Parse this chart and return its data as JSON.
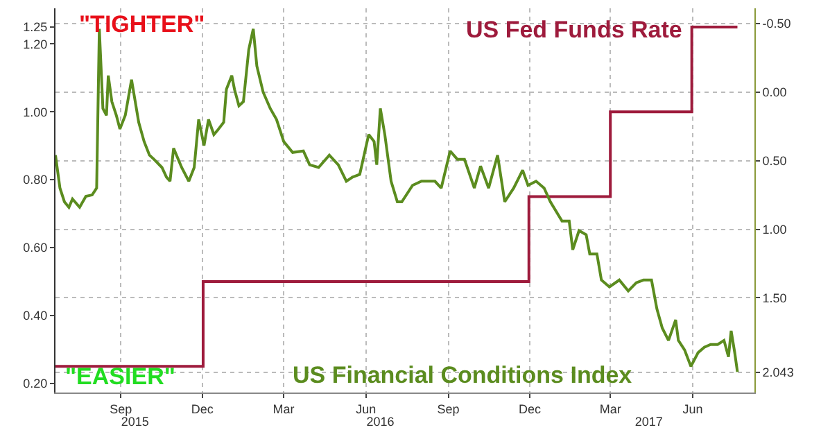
{
  "chart_data": {
    "type": "line",
    "annotations": [
      "\"TIGHTER\"",
      "\"EASIER\""
    ],
    "series": [
      {
        "name": "US Fed Funds Rate",
        "type": "step",
        "color": "#9e1b3c",
        "x": [
          "2015-07-04",
          "2015-12-16",
          "2016-12-14",
          "2017-03-15",
          "2017-06-14",
          "2017-08-04"
        ],
        "values": [
          0.25,
          0.5,
          0.75,
          1.0,
          1.25,
          1.25
        ]
      },
      {
        "name": "US Financial Conditions Index",
        "axis": "y2",
        "color": "#5b8c1f",
        "x": [
          "2015-07-04",
          "2015-07-09",
          "2015-07-14",
          "2015-07-19",
          "2015-07-23",
          "2015-07-31",
          "2015-08-07",
          "2015-08-14",
          "2015-08-19",
          "2015-08-22",
          "2015-08-26",
          "2015-08-30",
          "2015-09-01",
          "2015-09-05",
          "2015-09-10",
          "2015-09-14",
          "2015-09-20",
          "2015-09-27",
          "2015-10-05",
          "2015-10-11",
          "2015-10-17",
          "2015-10-22",
          "2015-10-31",
          "2015-11-05",
          "2015-11-09",
          "2015-11-13",
          "2015-11-22",
          "2015-11-30",
          "2015-12-06",
          "2015-12-11",
          "2015-12-17",
          "2015-12-22",
          "2015-12-28",
          "2016-01-01",
          "2016-01-08",
          "2016-01-11",
          "2016-01-17",
          "2016-01-20",
          "2016-01-25",
          "2016-01-30",
          "2016-02-05",
          "2016-02-10",
          "2016-02-14",
          "2016-02-21",
          "2016-02-29",
          "2016-03-07",
          "2016-03-15",
          "2016-03-25",
          "2016-04-06",
          "2016-04-13",
          "2016-04-23",
          "2016-05-05",
          "2016-05-15",
          "2016-05-24",
          "2016-05-31",
          "2016-06-08",
          "2016-06-18",
          "2016-06-24",
          "2016-06-27",
          "2016-07-01",
          "2016-07-06",
          "2016-07-13",
          "2016-07-20",
          "2016-07-25",
          "2016-08-06",
          "2016-08-16",
          "2016-08-31",
          "2016-09-07",
          "2016-09-17",
          "2016-09-25",
          "2016-10-03",
          "2016-10-14",
          "2016-10-21",
          "2016-10-30",
          "2016-11-09",
          "2016-11-17",
          "2016-11-27",
          "2016-12-07",
          "2016-12-13",
          "2016-12-22",
          "2016-12-31",
          "2017-01-07",
          "2017-01-20",
          "2017-01-28",
          "2017-02-01",
          "2017-02-08",
          "2017-02-16",
          "2017-02-20",
          "2017-02-28",
          "2017-03-05",
          "2017-03-14",
          "2017-03-25",
          "2017-04-04",
          "2017-04-13",
          "2017-04-21",
          "2017-04-30",
          "2017-05-06",
          "2017-05-12",
          "2017-05-19",
          "2017-05-27",
          "2017-05-30",
          "2017-06-06",
          "2017-06-13",
          "2017-06-21",
          "2017-06-28",
          "2017-07-05",
          "2017-07-13",
          "2017-07-20",
          "2017-07-25",
          "2017-07-28",
          "2017-08-01",
          "2017-08-04"
        ],
        "values": [
          0.46,
          0.7,
          0.8,
          0.84,
          0.78,
          0.84,
          0.76,
          0.75,
          0.7,
          -0.46,
          0.12,
          0.17,
          -0.12,
          0.07,
          0.17,
          0.27,
          0.17,
          -0.09,
          0.22,
          0.36,
          0.46,
          0.49,
          0.55,
          0.62,
          0.65,
          0.41,
          0.55,
          0.65,
          0.55,
          0.2,
          0.39,
          0.2,
          0.31,
          0.28,
          0.22,
          -0.02,
          -0.12,
          -0.02,
          0.1,
          0.07,
          -0.31,
          -0.46,
          -0.19,
          0.0,
          0.12,
          0.2,
          0.36,
          0.44,
          0.43,
          0.53,
          0.55,
          0.46,
          0.53,
          0.65,
          0.62,
          0.6,
          0.31,
          0.36,
          0.53,
          0.12,
          0.31,
          0.65,
          0.8,
          0.8,
          0.68,
          0.65,
          0.65,
          0.7,
          0.43,
          0.49,
          0.49,
          0.7,
          0.54,
          0.7,
          0.46,
          0.8,
          0.7,
          0.57,
          0.68,
          0.65,
          0.7,
          0.8,
          0.94,
          0.94,
          1.15,
          1.01,
          1.04,
          1.18,
          1.18,
          1.37,
          1.42,
          1.37,
          1.45,
          1.39,
          1.37,
          1.37,
          1.58,
          1.72,
          1.81,
          1.66,
          1.81,
          1.88,
          2.0,
          1.9,
          1.86,
          1.84,
          1.84,
          1.81,
          1.93,
          1.74,
          1.9,
          2.04
        ]
      }
    ],
    "xlim": [
      "2015-07-04",
      "2017-08-23"
    ],
    "xticks": [
      {
        "value": "2015-09-15",
        "label": "Sep"
      },
      {
        "value": "2015-12-15",
        "label": "Dec"
      },
      {
        "value": "2016-03-15",
        "label": "Mar"
      },
      {
        "value": "2016-06-15",
        "label": "Jun"
      },
      {
        "value": "2016-09-15",
        "label": "Sep"
      },
      {
        "value": "2016-12-15",
        "label": "Dec"
      },
      {
        "value": "2017-03-15",
        "label": "Mar"
      },
      {
        "value": "2017-06-15",
        "label": "Jun"
      }
    ],
    "x2lim": [
      "2015-07-04",
      "2017-08-23"
    ],
    "x2ticks": [
      {
        "value": "2015-10-01",
        "label": "2015"
      },
      {
        "value": "2016-07-01",
        "label": "2016"
      },
      {
        "value": "2017-04-27",
        "label": "2017"
      }
    ],
    "ylim": [
      0.173,
      1.305
    ],
    "yticks": [
      {
        "value": 0.2,
        "label": "0.20"
      },
      {
        "value": 0.4,
        "label": "0.40"
      },
      {
        "value": 0.6,
        "label": "0.60"
      },
      {
        "value": 0.8,
        "label": "0.80"
      },
      {
        "value": 1.0,
        "label": "1.00"
      },
      {
        "value": 1.2,
        "label": "1.20"
      },
      {
        "value": 1.25,
        "label": "1.25"
      }
    ],
    "y2lim": [
      2.19,
      -0.61
    ],
    "y2ticks": [
      {
        "value": -0.5,
        "label": "-0.50"
      },
      {
        "value": 0.0,
        "label": "0.00"
      },
      {
        "value": 0.5,
        "label": "0.50"
      },
      {
        "value": 1.0,
        "label": "1.00"
      },
      {
        "value": 1.5,
        "label": "1.50"
      },
      {
        "value": 2.043,
        "label": "2.043"
      }
    ],
    "grid": true
  }
}
